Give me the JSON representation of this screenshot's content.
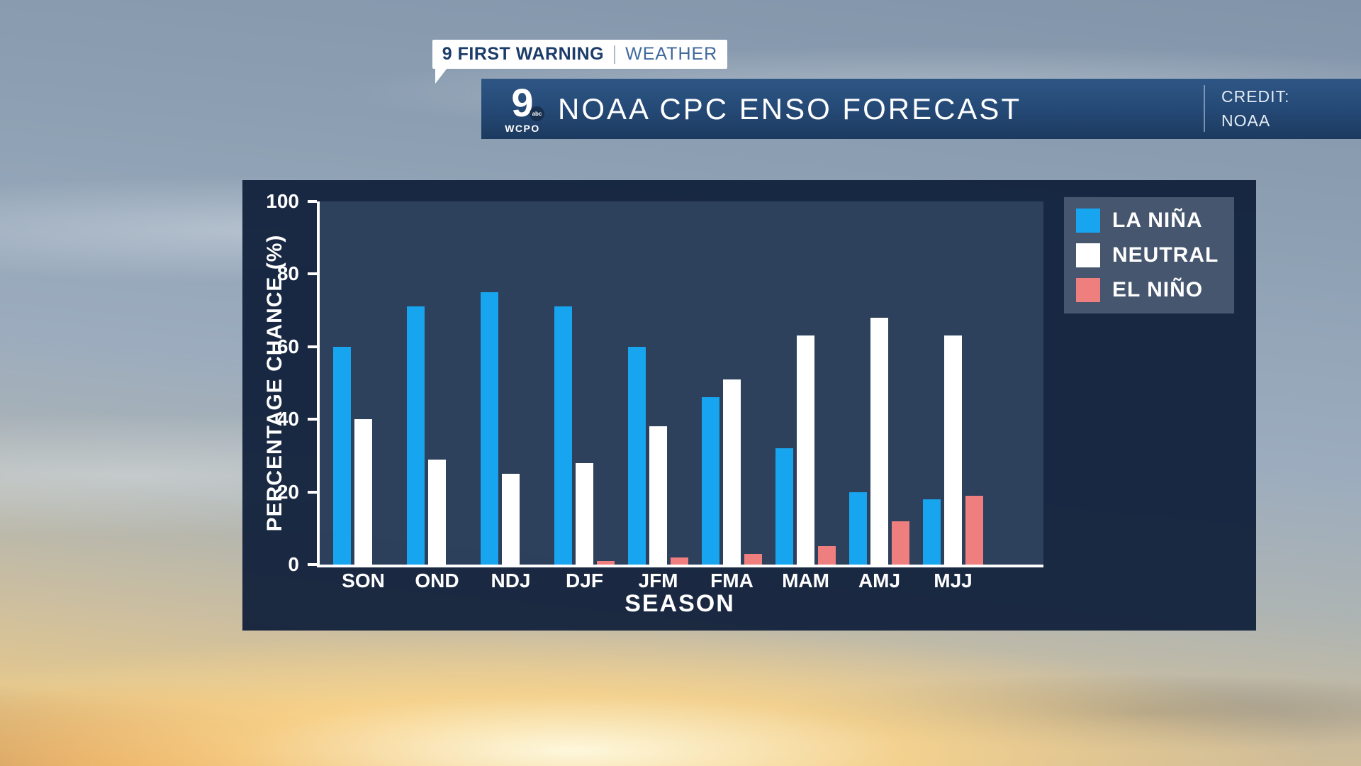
{
  "header": {
    "brand": "9 FIRST WARNING",
    "section": "WEATHER"
  },
  "banner": {
    "title": "NOAA CPC ENSO FORECAST",
    "credit_label": "CREDIT:",
    "credit_value": "NOAA",
    "logo": {
      "number": "9",
      "network": "abc",
      "station": "WCPO"
    }
  },
  "chart_data": {
    "type": "bar",
    "title": "NOAA CPC ENSO FORECAST",
    "categories": [
      "SON",
      "OND",
      "NDJ",
      "DJF",
      "JFM",
      "FMA",
      "MAM",
      "AMJ",
      "MJJ"
    ],
    "series": [
      {
        "name": "LA NIÑA",
        "color": "#18a5f0",
        "values": [
          60,
          71,
          75,
          71,
          60,
          46,
          32,
          20,
          18
        ]
      },
      {
        "name": "NEUTRAL",
        "color": "#ffffff",
        "values": [
          40,
          29,
          25,
          28,
          38,
          51,
          63,
          68,
          63
        ]
      },
      {
        "name": "EL NIÑO",
        "color": "#ef7f7f",
        "values": [
          0,
          0,
          0,
          1,
          2,
          3,
          5,
          12,
          19
        ]
      }
    ],
    "xlabel": "SEASON",
    "ylabel": "PERCENTAGE CHANCE (%)",
    "ylim": [
      0,
      100
    ],
    "yticks": [
      0,
      20,
      40,
      60,
      80,
      100
    ],
    "grid": false,
    "legend_position": "upper right"
  },
  "colors": {
    "la_nina": "#18a5f0",
    "neutral": "#ffffff",
    "el_nino": "#ef7f7f",
    "panel_navy": "#10203a",
    "plot_navy": "#324561",
    "banner_blue_top": "#2e5685",
    "banner_blue_bottom": "#1c3a5f",
    "brand_navy": "#1c3c6a",
    "section_blue": "#3f699c"
  }
}
